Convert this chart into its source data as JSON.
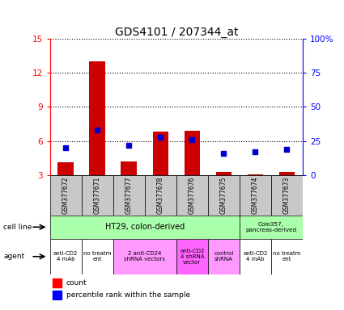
{
  "title": "GDS4101 / 207344_at",
  "samples": [
    "GSM377672",
    "GSM377671",
    "GSM377677",
    "GSM377678",
    "GSM377676",
    "GSM377675",
    "GSM377674",
    "GSM377673"
  ],
  "count_values": [
    4.1,
    13.0,
    4.2,
    6.8,
    6.9,
    3.3,
    3.1,
    3.3
  ],
  "percentile_values": [
    20,
    33,
    22,
    28,
    26,
    16,
    17,
    19
  ],
  "ylim_left": [
    3,
    15
  ],
  "ylim_right": [
    0,
    100
  ],
  "yticks_left": [
    3,
    6,
    9,
    12,
    15
  ],
  "yticks_right": [
    0,
    25,
    50,
    75,
    100
  ],
  "ytick_labels_right": [
    "0",
    "25",
    "50",
    "75",
    "100%"
  ],
  "bar_color": "#cc0000",
  "dot_color": "#0000cc",
  "cell_line_ht29_label": "HT29, colon-derived",
  "cell_line_colo357_label": "Colo357,\npancreas-derived",
  "ht29_color": "#aaffaa",
  "colo357_color": "#aaffaa",
  "agent_row": [
    {
      "label": "anti-CD2\n4 mAb",
      "span": [
        0,
        0
      ],
      "color": "#ffffff"
    },
    {
      "label": "no treatm\nent",
      "span": [
        1,
        1
      ],
      "color": "#ffffff"
    },
    {
      "label": "2 anti-CD24\nshRNA vectors",
      "span": [
        2,
        3
      ],
      "color": "#ff99ff"
    },
    {
      "label": "anti-CD2\n4 shRNA\nvector",
      "span": [
        4,
        4
      ],
      "color": "#ff66ff"
    },
    {
      "label": "control\nshRNA",
      "span": [
        5,
        5
      ],
      "color": "#ff99ff"
    },
    {
      "label": "anti-CD2\n4 mAb",
      "span": [
        6,
        6
      ],
      "color": "#ffffff"
    },
    {
      "label": "no treatm\nent",
      "span": [
        7,
        7
      ],
      "color": "#ffffff"
    }
  ],
  "gsm_box_color": "#c8c8c8",
  "title_fontsize": 10,
  "tick_fontsize": 7.5
}
